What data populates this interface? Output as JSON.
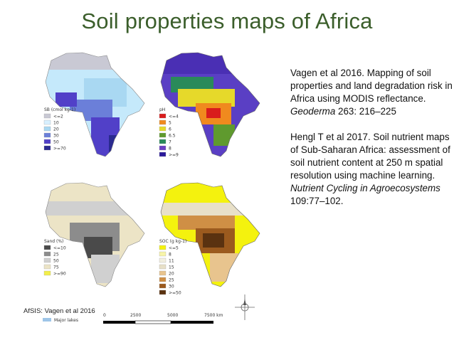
{
  "slide": {
    "title": "Soil properties maps of Africa",
    "credit": "AfSIS: Vagen et al 2016"
  },
  "references": [
    {
      "text_before": "Vagen et al 2016. Mapping of soil properties and land degradation risk in Africa using MODIS reflectance.",
      "journal": "Geoderma",
      "text_after": "263: 216–225"
    },
    {
      "text_before": "Hengl T et al 2017. Soil nutrient maps of Sub-Saharan Africa: assessment of soil nutrient content at 250 m spatial resolution using machine learning.",
      "journal": "Nutrient Cycling in Agroecosystems",
      "text_after": "109:77–102."
    }
  ],
  "maps": [
    {
      "legend_title": "SB (cmol kg-1)",
      "classes": [
        "<=2",
        "10",
        "20",
        "30",
        "50",
        ">=70"
      ],
      "colors": [
        "#c9c9d4",
        "#d8f0ff",
        "#a9d8f2",
        "#6b7fd9",
        "#5140c8",
        "#2a2a8f"
      ]
    },
    {
      "legend_title": "pH",
      "classes": [
        "<=4",
        "5",
        "6",
        "6.5",
        "7",
        "8",
        ">=9"
      ],
      "colors": [
        "#d91c1c",
        "#f08a1e",
        "#e6d92a",
        "#5f9a2e",
        "#2a8a5a",
        "#6a3fc4",
        "#2a1a9a"
      ]
    },
    {
      "legend_title": "Sand (%)",
      "classes": [
        "<=10",
        "25",
        "50",
        "75",
        ">=90"
      ],
      "colors": [
        "#4a4a4a",
        "#8c8c8c",
        "#d0d0d0",
        "#ece4c6",
        "#f2ee4a"
      ]
    },
    {
      "legend_title": "SOC (g kg-1)",
      "classes": [
        "<=5",
        "8",
        "11",
        "15",
        "20",
        "25",
        "30",
        ">=50"
      ],
      "colors": [
        "#f4f20e",
        "#f7f4a8",
        "#f2efe0",
        "#e8e0c8",
        "#e8c48e",
        "#cf8f45",
        "#9b5a1e",
        "#5a3210"
      ]
    }
  ],
  "scale_bar": {
    "ticks": [
      "0",
      "2500",
      "5000",
      "7500 km"
    ]
  },
  "lakes_legend": "Major lakes"
}
